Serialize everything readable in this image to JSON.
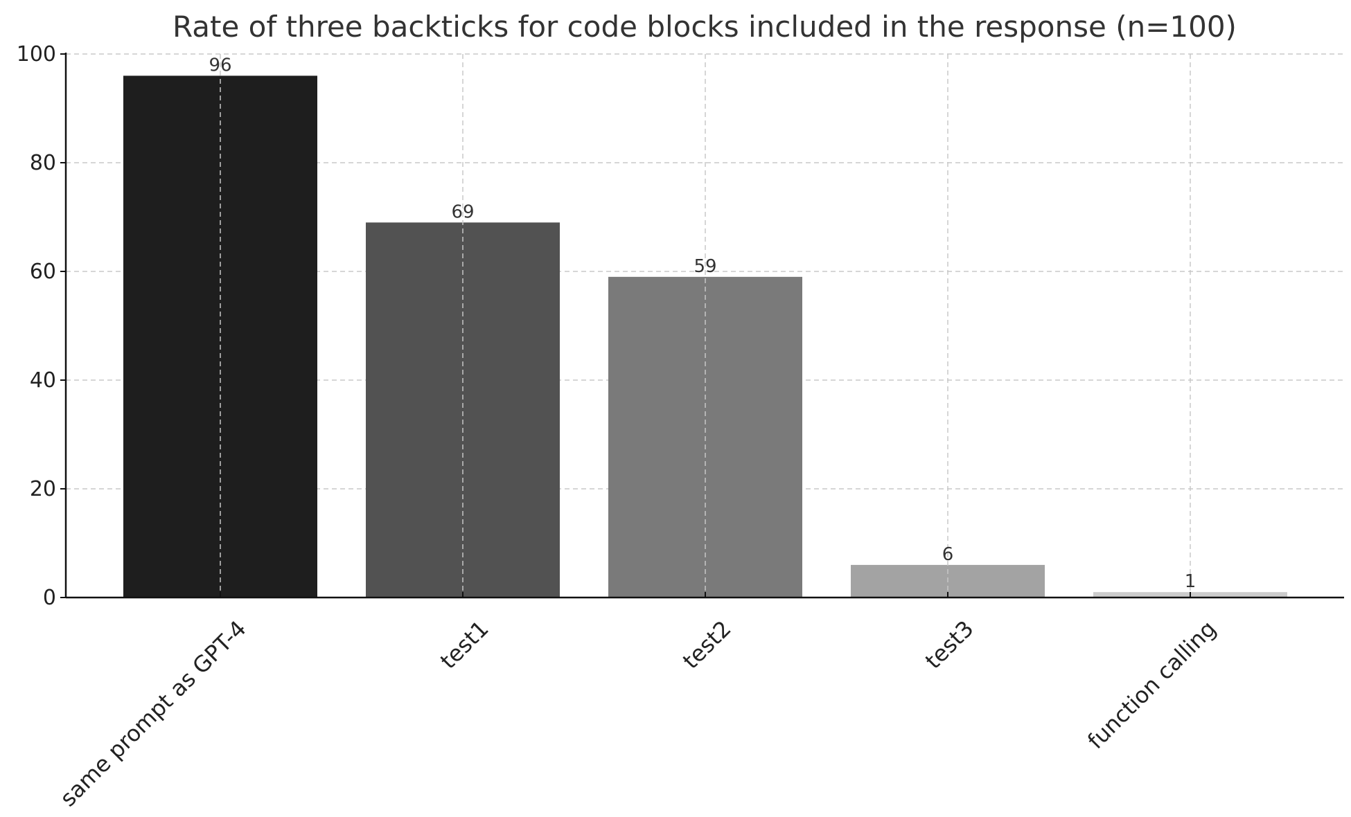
{
  "chart_data": {
    "type": "bar",
    "title": "Rate of three backticks for code blocks included in the response (n=100)",
    "xlabel": "",
    "ylabel": "",
    "categories": [
      "same prompt as GPT-4",
      "test1",
      "test2",
      "test3",
      "function calling"
    ],
    "values": [
      96,
      69,
      59,
      6,
      1
    ],
    "value_labels": [
      "96",
      "69",
      "59",
      "6",
      "1"
    ],
    "bar_colors": [
      "#1e1e1e",
      "#525252",
      "#7a7a7a",
      "#a3a3a3",
      "#cccccc"
    ],
    "ylim": [
      0,
      100
    ],
    "yticks": [
      0,
      20,
      40,
      60,
      80,
      100
    ],
    "ytick_labels": [
      "0",
      "20",
      "40",
      "60",
      "80",
      "100"
    ],
    "grid": true,
    "legend": "none"
  }
}
